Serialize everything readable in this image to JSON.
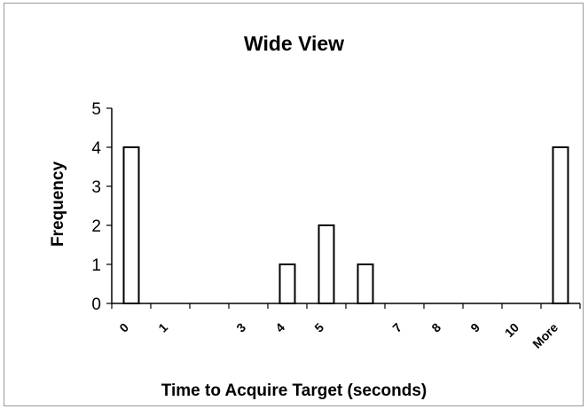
{
  "chart_data": {
    "type": "bar",
    "title": "Wide View",
    "xlabel": "Time to Acquire Target (seconds)",
    "ylabel": "Frequency",
    "categories": [
      "0",
      "1",
      "",
      "3",
      "4",
      "5",
      "",
      "7",
      "8",
      "9",
      "10",
      "More"
    ],
    "values": [
      4,
      0,
      0,
      0,
      1,
      2,
      1,
      0,
      0,
      0,
      0,
      4
    ],
    "ylim": [
      0,
      5
    ],
    "yticks": [
      "0",
      "1",
      "2",
      "3",
      "4",
      "5"
    ],
    "grid": false,
    "legend": "none"
  }
}
